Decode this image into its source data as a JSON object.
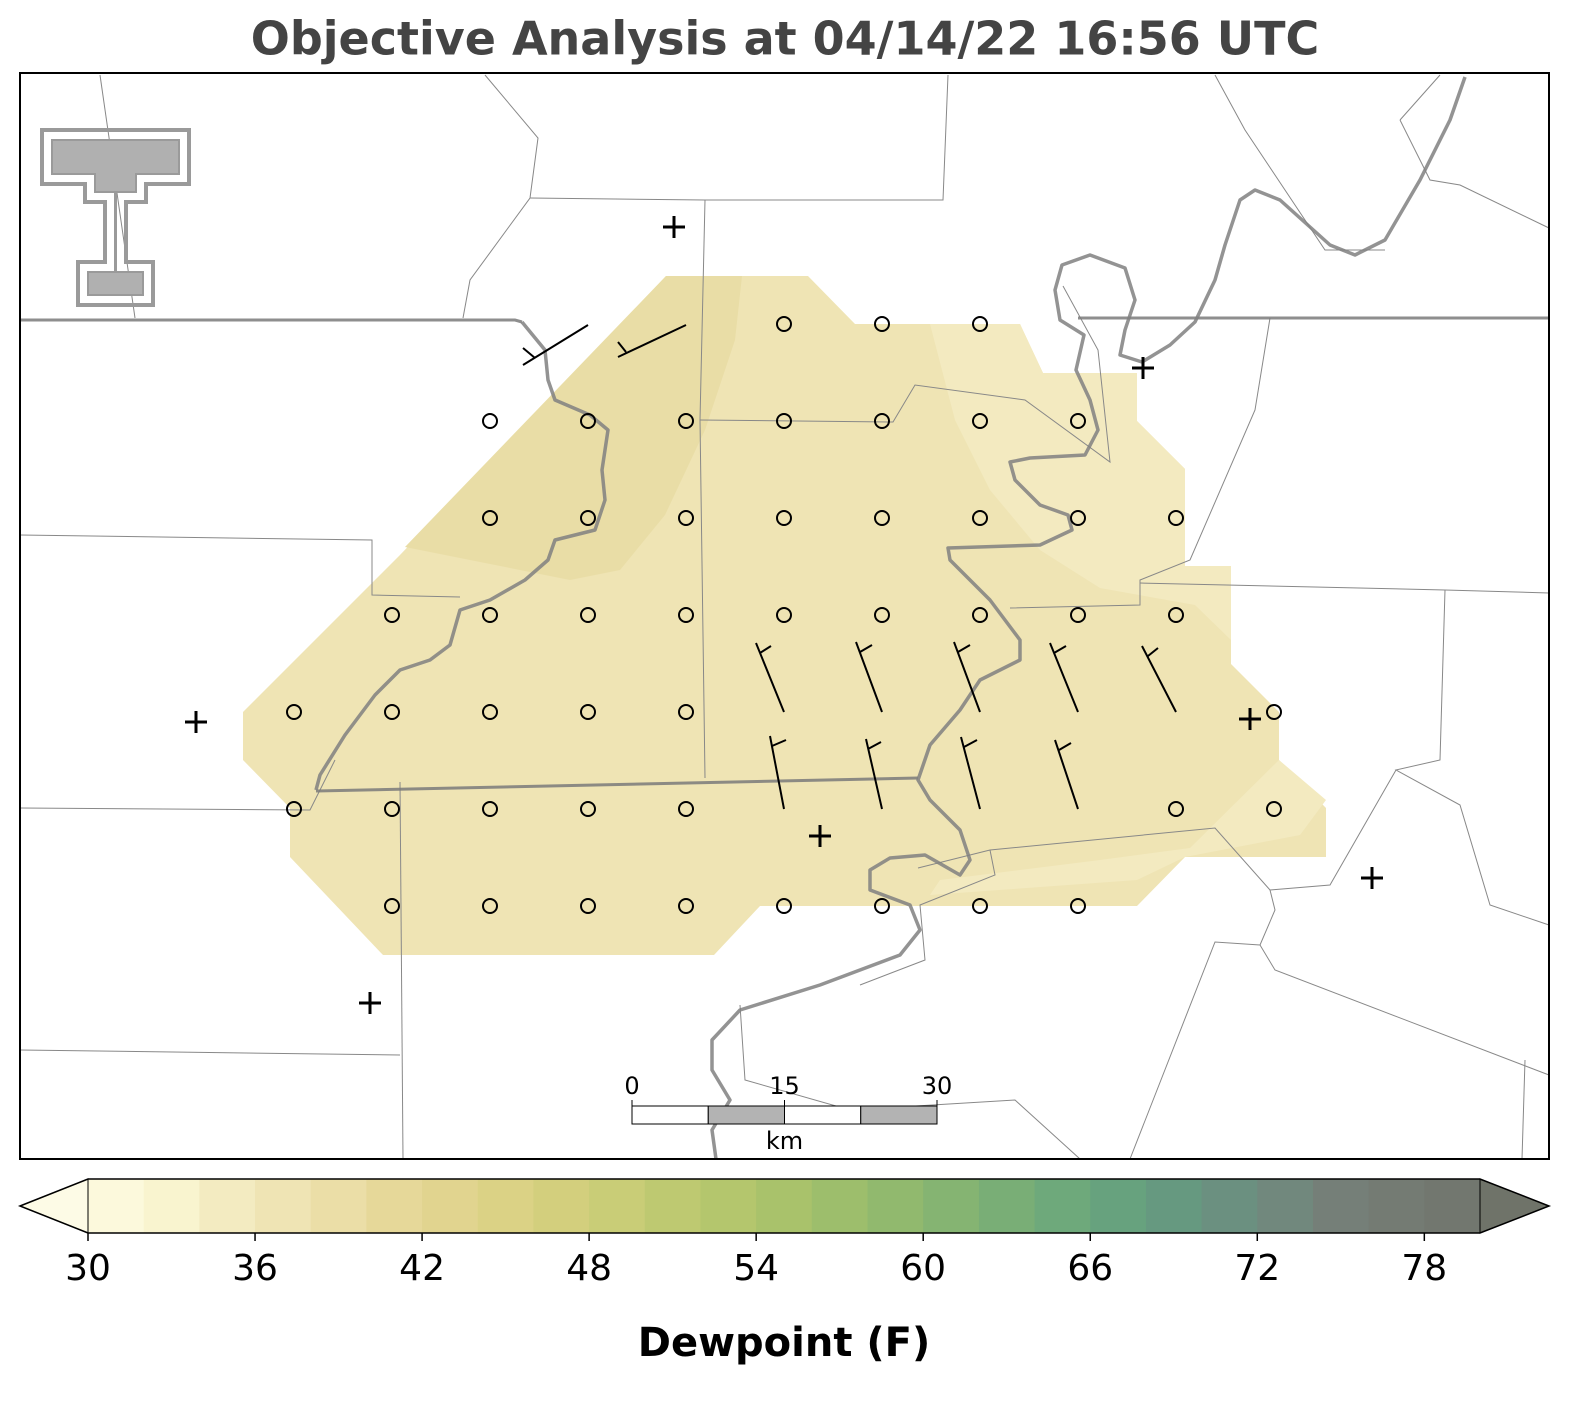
{
  "title": "Objective Analysis at 04/14/22 16:56 UTC",
  "colorbar": {
    "label": "Dewpoint (F)",
    "lim": [
      30,
      80
    ],
    "ticks": [
      30,
      36,
      42,
      48,
      54,
      60,
      66,
      72,
      78
    ],
    "colors": [
      "#fcf9dc",
      "#f9f4cf",
      "#f3ebc1",
      "#efe4b4",
      "#ebdea7",
      "#e6d899",
      "#e1d48f",
      "#dbd285",
      "#d3cf7d",
      "#c9cd77",
      "#bec971",
      "#b4c66d",
      "#a9c26b",
      "#9dbe6c",
      "#91b96e",
      "#85b472",
      "#79ae76",
      "#6ea97b",
      "#67a27e",
      "#669980",
      "#6b9080",
      "#71887d",
      "#757f78",
      "#747b73",
      "#72776f"
    ],
    "under_color": "#fdfbe6",
    "over_color": "#6f7369"
  },
  "scale_bar": {
    "lim": [
      0,
      30
    ],
    "ticks": [
      0,
      15,
      30
    ],
    "unit": "km"
  }
}
